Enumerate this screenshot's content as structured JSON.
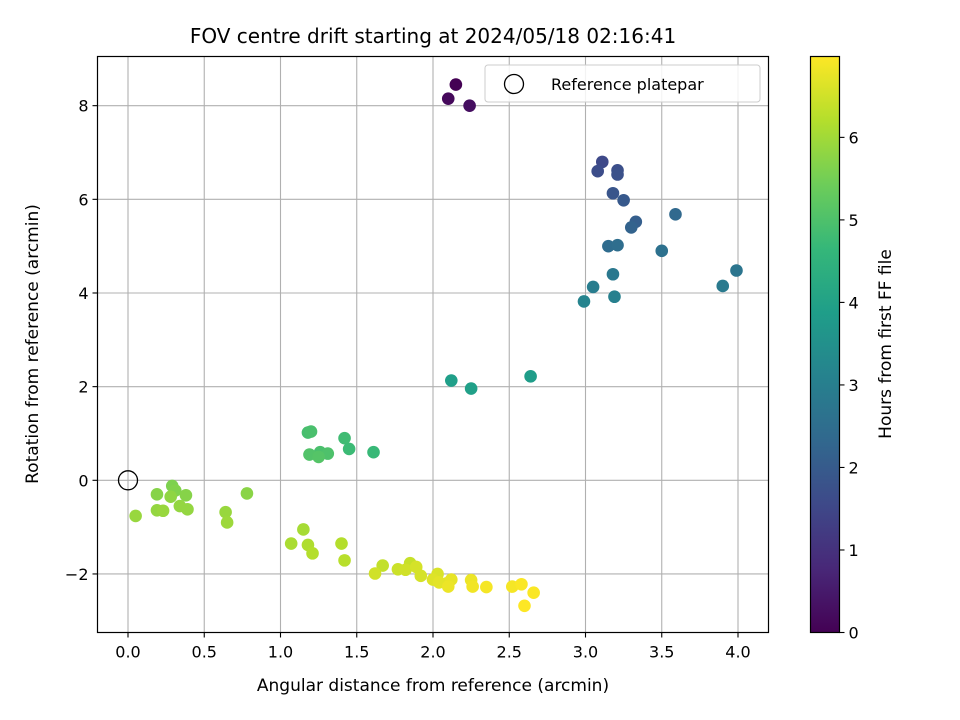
{
  "chart_data": {
    "type": "scatter",
    "title": "FOV centre drift starting at 2024/05/18 02:16:41",
    "xlabel": "Angular distance from reference (arcmin)",
    "ylabel": "Rotation from reference (arcmin)",
    "xlim": [
      -0.2,
      4.2
    ],
    "ylim": [
      -3.25,
      9.05
    ],
    "xticks": [
      0.0,
      0.5,
      1.0,
      1.5,
      2.0,
      2.5,
      3.0,
      3.5,
      4.0
    ],
    "xtick_labels": [
      "0.0",
      "0.5",
      "1.0",
      "1.5",
      "2.0",
      "2.5",
      "3.0",
      "3.5",
      "4.0"
    ],
    "yticks": [
      -2,
      0,
      2,
      4,
      6,
      8
    ],
    "ytick_labels": [
      "−2",
      "0",
      "2",
      "4",
      "6",
      "8"
    ],
    "grid": true,
    "legend": {
      "position": "top-right",
      "entries": [
        "Reference platepar"
      ]
    },
    "reference_point": {
      "x": 0.0,
      "y": 0.0
    },
    "colorbar": {
      "label": "Hours from first FF file",
      "colormap": "viridis",
      "range": [
        0,
        6.98
      ],
      "ticks": [
        0,
        1,
        2,
        3,
        4,
        5,
        6
      ],
      "tick_labels": [
        "0",
        "1",
        "2",
        "3",
        "4",
        "5",
        "6"
      ]
    },
    "points": [
      {
        "x": 2.15,
        "y": 8.45,
        "c": 0.0
      },
      {
        "x": 2.1,
        "y": 8.15,
        "c": 0.15
      },
      {
        "x": 2.24,
        "y": 8.0,
        "c": 0.25
      },
      {
        "x": 3.11,
        "y": 6.8,
        "c": 1.55
      },
      {
        "x": 3.08,
        "y": 6.6,
        "c": 1.65
      },
      {
        "x": 3.21,
        "y": 6.62,
        "c": 1.7
      },
      {
        "x": 3.21,
        "y": 6.53,
        "c": 1.75
      },
      {
        "x": 3.18,
        "y": 6.13,
        "c": 1.85
      },
      {
        "x": 3.25,
        "y": 5.98,
        "c": 1.95
      },
      {
        "x": 3.33,
        "y": 5.52,
        "c": 2.1
      },
      {
        "x": 3.3,
        "y": 5.4,
        "c": 2.2
      },
      {
        "x": 3.59,
        "y": 5.68,
        "c": 2.35
      },
      {
        "x": 3.15,
        "y": 5.0,
        "c": 2.45
      },
      {
        "x": 3.21,
        "y": 5.02,
        "c": 2.5
      },
      {
        "x": 3.5,
        "y": 4.9,
        "c": 2.6
      },
      {
        "x": 3.99,
        "y": 4.48,
        "c": 2.7
      },
      {
        "x": 3.18,
        "y": 4.4,
        "c": 2.8
      },
      {
        "x": 3.9,
        "y": 4.15,
        "c": 2.85
      },
      {
        "x": 3.05,
        "y": 4.13,
        "c": 2.95
      },
      {
        "x": 3.19,
        "y": 3.92,
        "c": 3.05
      },
      {
        "x": 2.99,
        "y": 3.82,
        "c": 3.15
      },
      {
        "x": 2.12,
        "y": 2.13,
        "c": 3.9
      },
      {
        "x": 2.25,
        "y": 1.96,
        "c": 3.95
      },
      {
        "x": 2.64,
        "y": 2.22,
        "c": 3.85
      },
      {
        "x": 1.18,
        "y": 1.02,
        "c": 4.9
      },
      {
        "x": 1.2,
        "y": 1.04,
        "c": 4.95
      },
      {
        "x": 1.42,
        "y": 0.9,
        "c": 4.8
      },
      {
        "x": 1.45,
        "y": 0.67,
        "c": 4.75
      },
      {
        "x": 1.61,
        "y": 0.6,
        "c": 4.7
      },
      {
        "x": 1.26,
        "y": 0.6,
        "c": 4.95
      },
      {
        "x": 1.31,
        "y": 0.57,
        "c": 5.0
      },
      {
        "x": 1.19,
        "y": 0.55,
        "c": 5.05
      },
      {
        "x": 1.25,
        "y": 0.5,
        "c": 5.1
      },
      {
        "x": 0.29,
        "y": -0.12,
        "c": 5.6
      },
      {
        "x": 0.31,
        "y": -0.22,
        "c": 5.65
      },
      {
        "x": 0.38,
        "y": -0.32,
        "c": 5.7
      },
      {
        "x": 0.19,
        "y": -0.3,
        "c": 5.7
      },
      {
        "x": 0.78,
        "y": -0.28,
        "c": 5.75
      },
      {
        "x": 0.28,
        "y": -0.35,
        "c": 5.8
      },
      {
        "x": 0.34,
        "y": -0.55,
        "c": 5.85
      },
      {
        "x": 0.39,
        "y": -0.62,
        "c": 5.85
      },
      {
        "x": 0.19,
        "y": -0.64,
        "c": 5.85
      },
      {
        "x": 0.23,
        "y": -0.65,
        "c": 5.9
      },
      {
        "x": 0.64,
        "y": -0.68,
        "c": 5.9
      },
      {
        "x": 0.05,
        "y": -0.76,
        "c": 5.9
      },
      {
        "x": 0.65,
        "y": -0.9,
        "c": 5.95
      },
      {
        "x": 1.15,
        "y": -1.05,
        "c": 6.05
      },
      {
        "x": 1.07,
        "y": -1.35,
        "c": 6.1
      },
      {
        "x": 1.18,
        "y": -1.38,
        "c": 6.15
      },
      {
        "x": 1.4,
        "y": -1.35,
        "c": 6.2
      },
      {
        "x": 1.21,
        "y": -1.56,
        "c": 6.2
      },
      {
        "x": 1.42,
        "y": -1.71,
        "c": 6.25
      },
      {
        "x": 1.67,
        "y": -1.82,
        "c": 6.35
      },
      {
        "x": 1.85,
        "y": -1.77,
        "c": 6.4
      },
      {
        "x": 1.77,
        "y": -1.9,
        "c": 6.45
      },
      {
        "x": 1.82,
        "y": -1.91,
        "c": 6.5
      },
      {
        "x": 1.62,
        "y": -1.99,
        "c": 6.5
      },
      {
        "x": 1.89,
        "y": -1.85,
        "c": 6.55
      },
      {
        "x": 1.92,
        "y": -2.04,
        "c": 6.55
      },
      {
        "x": 2.03,
        "y": -2.0,
        "c": 6.6
      },
      {
        "x": 2.0,
        "y": -2.12,
        "c": 6.65
      },
      {
        "x": 2.04,
        "y": -2.18,
        "c": 6.7
      },
      {
        "x": 2.09,
        "y": -2.2,
        "c": 6.7
      },
      {
        "x": 2.12,
        "y": -2.12,
        "c": 6.75
      },
      {
        "x": 2.1,
        "y": -2.27,
        "c": 6.8
      },
      {
        "x": 2.25,
        "y": -2.13,
        "c": 6.8
      },
      {
        "x": 2.26,
        "y": -2.27,
        "c": 6.85
      },
      {
        "x": 2.35,
        "y": -2.28,
        "c": 6.9
      },
      {
        "x": 2.52,
        "y": -2.27,
        "c": 6.9
      },
      {
        "x": 2.58,
        "y": -2.22,
        "c": 6.95
      },
      {
        "x": 2.66,
        "y": -2.4,
        "c": 6.95
      },
      {
        "x": 2.6,
        "y": -2.68,
        "c": 6.98
      }
    ]
  }
}
